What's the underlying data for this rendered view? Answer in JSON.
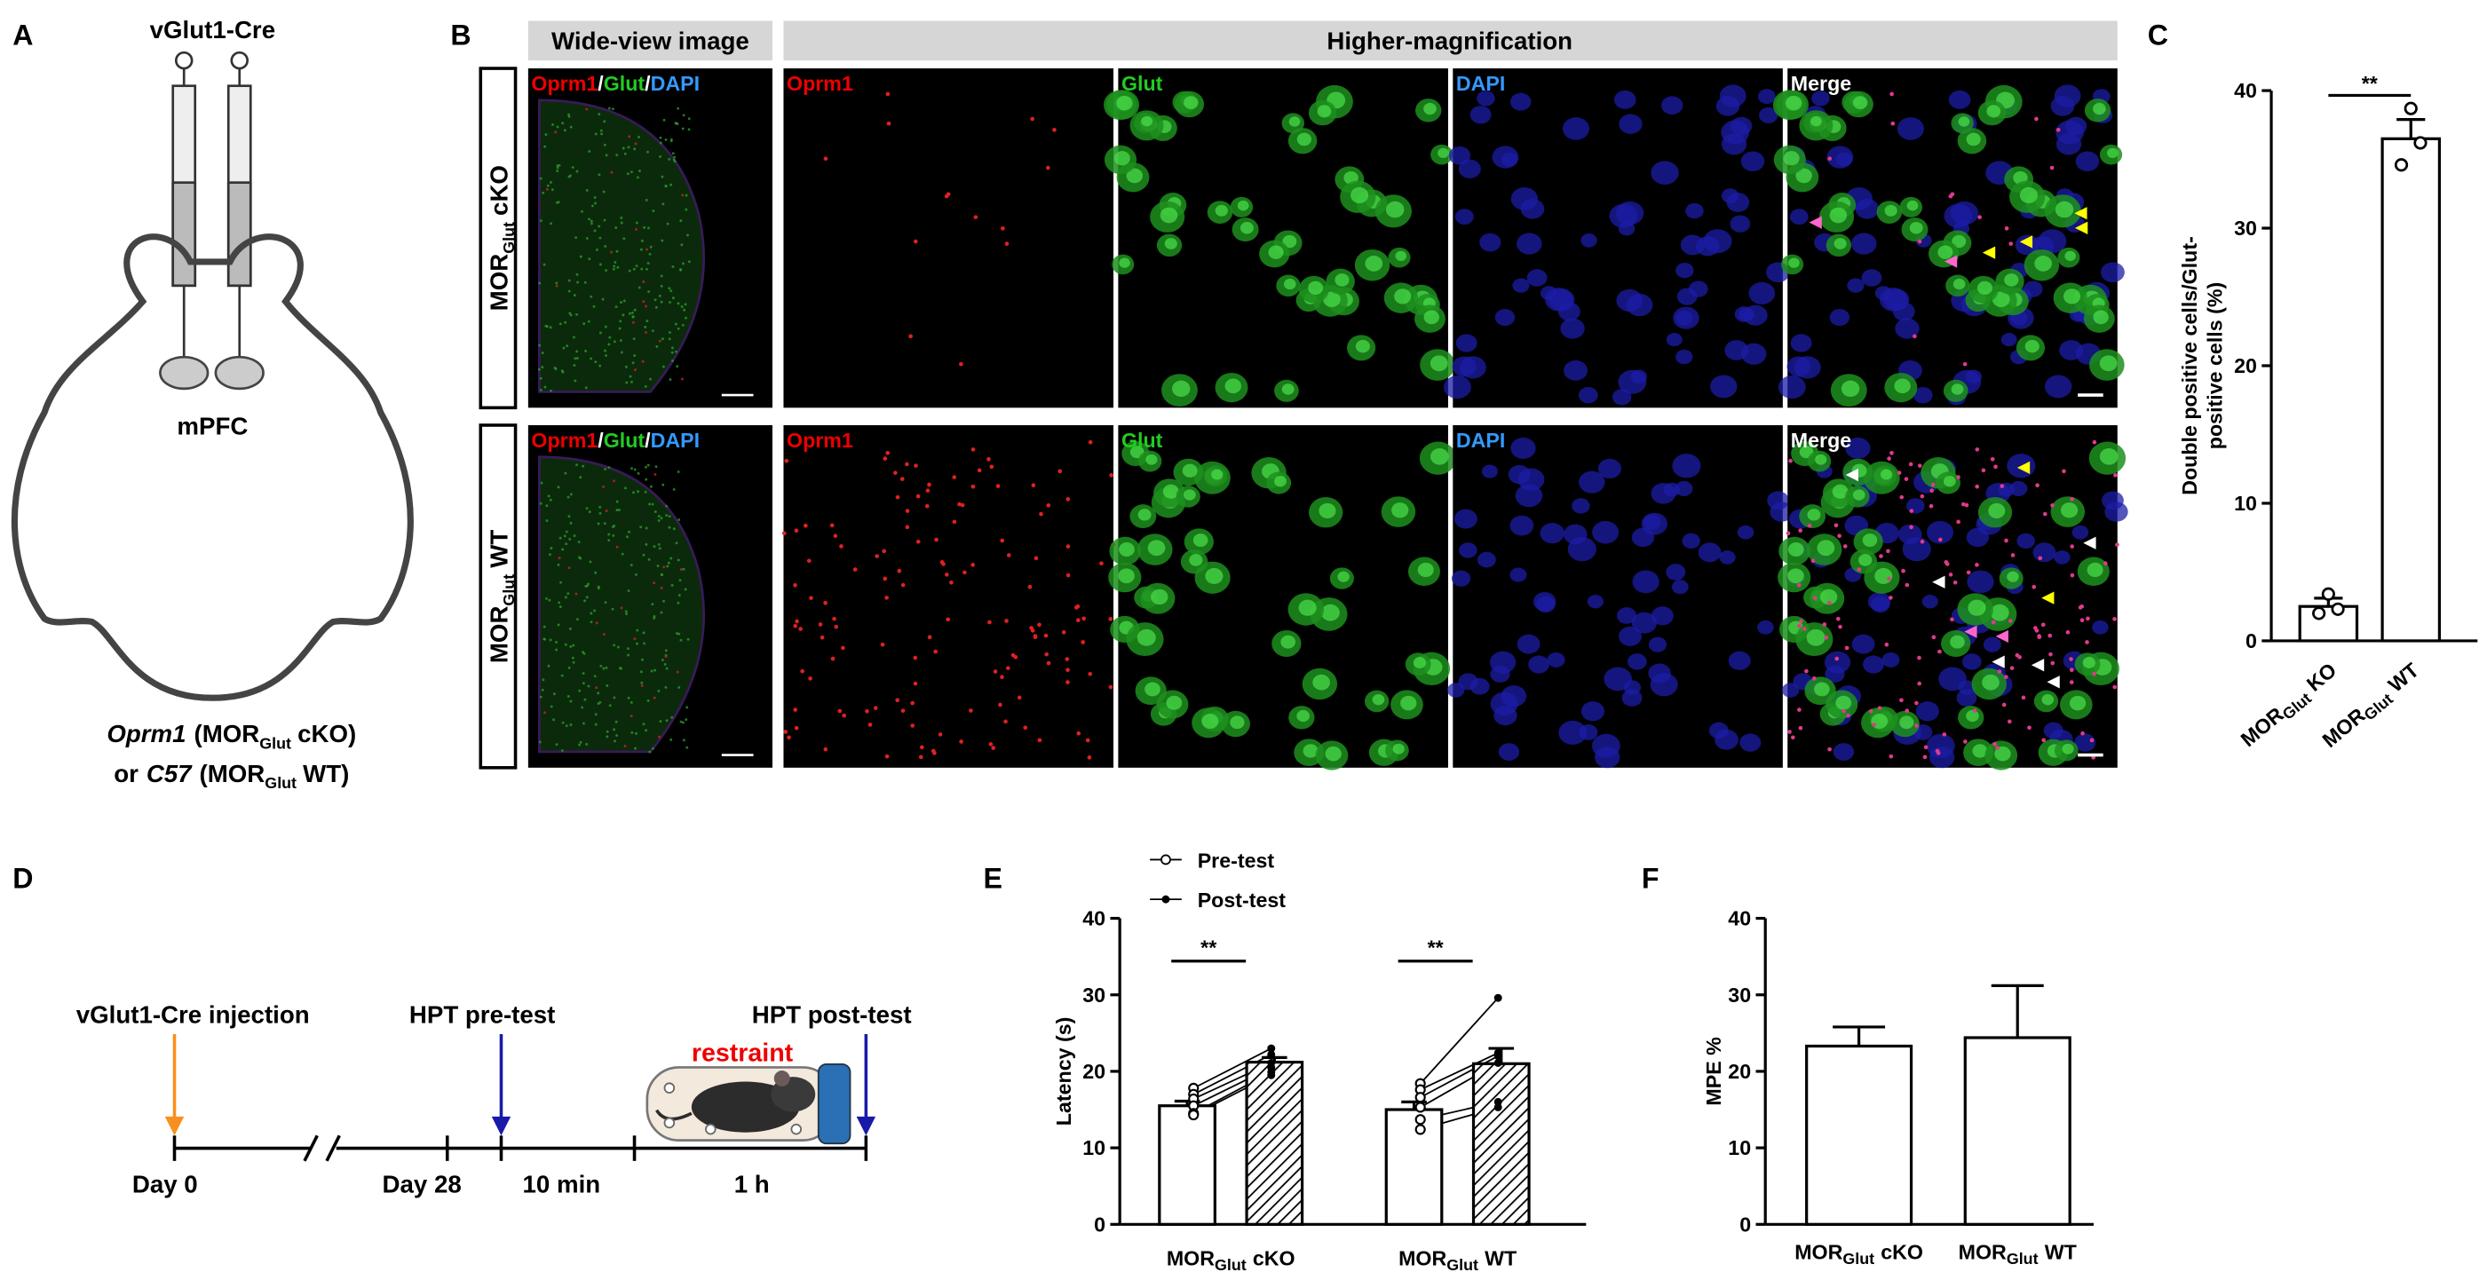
{
  "panel_labels": [
    "A",
    "B",
    "C",
    "D",
    "E",
    "F"
  ],
  "panel_a": {
    "virus": "vGlut1-Cre",
    "region": "mPFC",
    "line1": {
      "gene": "Oprm1",
      "pre": "(MOR",
      "sub": "Glut",
      "post": "cKO)"
    },
    "line2": {
      "lead": "or",
      "gene": "C57",
      "pre": "(MOR",
      "sub": "Glut",
      "post": "WT)"
    }
  },
  "panel_b": {
    "headers": [
      "Wide-view image",
      "Higher-magnification"
    ],
    "rows": [
      {
        "main": "MOR",
        "sub": "Glut",
        "rest": "cKO"
      },
      {
        "main": "MOR",
        "sub": "Glut",
        "rest": "WT"
      }
    ],
    "wide_label": [
      "Oprm1",
      "/",
      "Glut",
      "/",
      "DAPI"
    ],
    "channels": [
      "Oprm1",
      "Glut",
      "DAPI",
      "Merge"
    ]
  },
  "panel_d": {
    "events": [
      "vGlut1-Cre injection",
      "HPT pre-test",
      "HPT post-test"
    ],
    "treatment": "restraint",
    "timeline": [
      "Day 0",
      "Day 28",
      "10 min",
      "1 h"
    ]
  },
  "chart_data": [
    {
      "type": "bar",
      "ylabel": [
        "Double positive cells/Glut-",
        "positive cells (%)"
      ],
      "categories": [
        {
          "main": "MOR",
          "sub": "Glut",
          "rest": "KO"
        },
        {
          "main": "MOR",
          "sub": "Glut",
          "rest": "WT"
        }
      ],
      "values": [
        2.5,
        36.5
      ],
      "errors": [
        0.6,
        1.4
      ],
      "points": [
        [
          3.4,
          2.3,
          2.0
        ],
        [
          38.7,
          36.2,
          34.6
        ]
      ],
      "significance": "**",
      "ylim": [
        0,
        40
      ],
      "yticks": [
        0,
        10,
        20,
        30,
        40
      ],
      "color": "#ffffff"
    },
    {
      "type": "grouped_bar",
      "ylabel": "Latency (s)",
      "categories": [
        {
          "main": "MOR",
          "sub": "Glut",
          "rest": "cKO"
        },
        {
          "main": "MOR",
          "sub": "Glut",
          "rest": "WT"
        }
      ],
      "series": [
        {
          "name": "Pre-test",
          "pattern": "open",
          "values": [
            15.5,
            15.0
          ],
          "errors": [
            0.6,
            1.0
          ],
          "points": [
            [
              17.8,
              17.0,
              16.4,
              15.5,
              14.5,
              14.3
            ],
            [
              18.4,
              17.6,
              16.6,
              15.3,
              13.7,
              12.4
            ]
          ]
        },
        {
          "name": "Post-test",
          "pattern": "hatched",
          "values": [
            21.2,
            21.0
          ],
          "errors": [
            0.6,
            2.0
          ],
          "points": [
            [
              23.0,
              22.2,
              21.1,
              20.5,
              19.9,
              19.5
            ],
            [
              29.6,
              22.4,
              22.0,
              21.1,
              16.0,
              15.3
            ]
          ]
        }
      ],
      "significance": [
        "**",
        "**"
      ],
      "ylim": [
        0,
        40
      ],
      "yticks": [
        0,
        10,
        20,
        30,
        40
      ]
    },
    {
      "type": "bar",
      "ylabel": "MPE %",
      "categories": [
        {
          "main": "MOR",
          "sub": "Glut",
          "rest": "cKO"
        },
        {
          "main": "MOR",
          "sub": "Glut",
          "rest": "WT"
        }
      ],
      "values": [
        23.3,
        24.4
      ],
      "errors": [
        2.5,
        6.8
      ],
      "ylim": [
        0,
        40
      ],
      "yticks": [
        0,
        10,
        20,
        30,
        40
      ],
      "color": "#ffffff"
    }
  ]
}
